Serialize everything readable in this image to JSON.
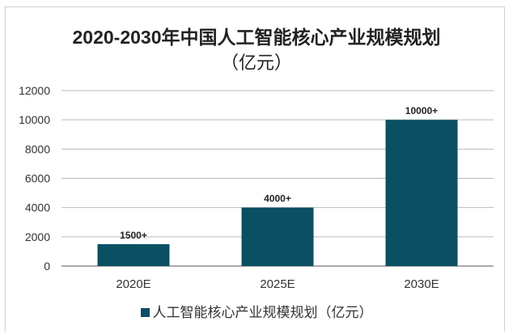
{
  "chart_data": {
    "type": "bar",
    "title": "2020-2030年中国人工智能核心产业规模规划",
    "subtitle": "（亿元）",
    "categories": [
      "2020E",
      "2025E",
      "2030E"
    ],
    "series": [
      {
        "name": "人工智能核心产业规模规划（亿元）",
        "values": [
          1500,
          4000,
          10000
        ],
        "color": "#0b4f63"
      }
    ],
    "data_labels": [
      "1500+",
      "4000+",
      "10000+"
    ],
    "yticks": [
      0,
      2000,
      4000,
      6000,
      8000,
      10000,
      12000
    ],
    "ylim": [
      0,
      12000
    ],
    "xlabel": "",
    "ylabel": "",
    "grid": true,
    "legend_position": "bottom"
  }
}
